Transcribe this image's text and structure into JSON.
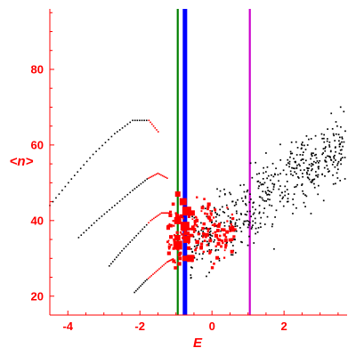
{
  "chart_data": {
    "type": "scatter",
    "title": "",
    "xlabel": "E",
    "ylabel": "<n>",
    "xlim": [
      -4.5,
      3.75
    ],
    "ylim": [
      15,
      96
    ],
    "xticks": [
      -4,
      -2,
      0,
      2
    ],
    "yticks": [
      20,
      40,
      60,
      80
    ],
    "grid": false,
    "legend": "none",
    "colors": {
      "axis": "#ff0000",
      "points_black": "#000000",
      "points_red": "#ff0000",
      "line_green": "#008000",
      "line_blue": "#0000ff",
      "line_magenta": "#cc00cc"
    },
    "vlines": [
      {
        "x": -0.95,
        "color": "#008000"
      },
      {
        "x": -0.75,
        "color": "#0000ff"
      },
      {
        "x": 1.05,
        "color": "#cc00cc"
      }
    ],
    "parabolas": [
      {
        "x": [
          -4.5,
          -3.9,
          -3.3,
          -2.7,
          -2.2,
          -1.75,
          -1.45
        ],
        "y": [
          44,
          51,
          57.5,
          63,
          66.5,
          66.5,
          63
        ]
      },
      {
        "x": [
          -3.7,
          -3.2,
          -2.7,
          -2.2,
          -1.8,
          -1.5,
          -1.2
        ],
        "y": [
          35.5,
          40,
          44,
          48,
          51,
          52.5,
          51
        ]
      },
      {
        "x": [
          -2.85,
          -2.5,
          -2.1,
          -1.7,
          -1.4,
          -1.15
        ],
        "y": [
          28,
          32,
          36,
          40,
          42,
          42
        ]
      },
      {
        "x": [
          -2.15,
          -1.85,
          -1.55,
          -1.25,
          -1.05
        ],
        "y": [
          21,
          24,
          26.5,
          29,
          30
        ]
      }
    ],
    "cloud_black": {
      "n": 520,
      "x_range": [
        -0.6,
        3.7
      ],
      "trend_y0": 37,
      "trend_slope": 6.2
    },
    "big_markers_red": [
      {
        "x": -0.95,
        "y": 47
      },
      {
        "x": -0.8,
        "y": 45
      },
      {
        "x": -0.7,
        "y": 42.5
      },
      {
        "x": -0.55,
        "y": 42
      },
      {
        "x": -0.95,
        "y": 40
      },
      {
        "x": -0.75,
        "y": 38.5
      },
      {
        "x": -0.95,
        "y": 35.5
      },
      {
        "x": -0.7,
        "y": 35
      },
      {
        "x": -0.95,
        "y": 33.5
      },
      {
        "x": -0.75,
        "y": 30
      },
      {
        "x": -0.6,
        "y": 30
      }
    ]
  }
}
